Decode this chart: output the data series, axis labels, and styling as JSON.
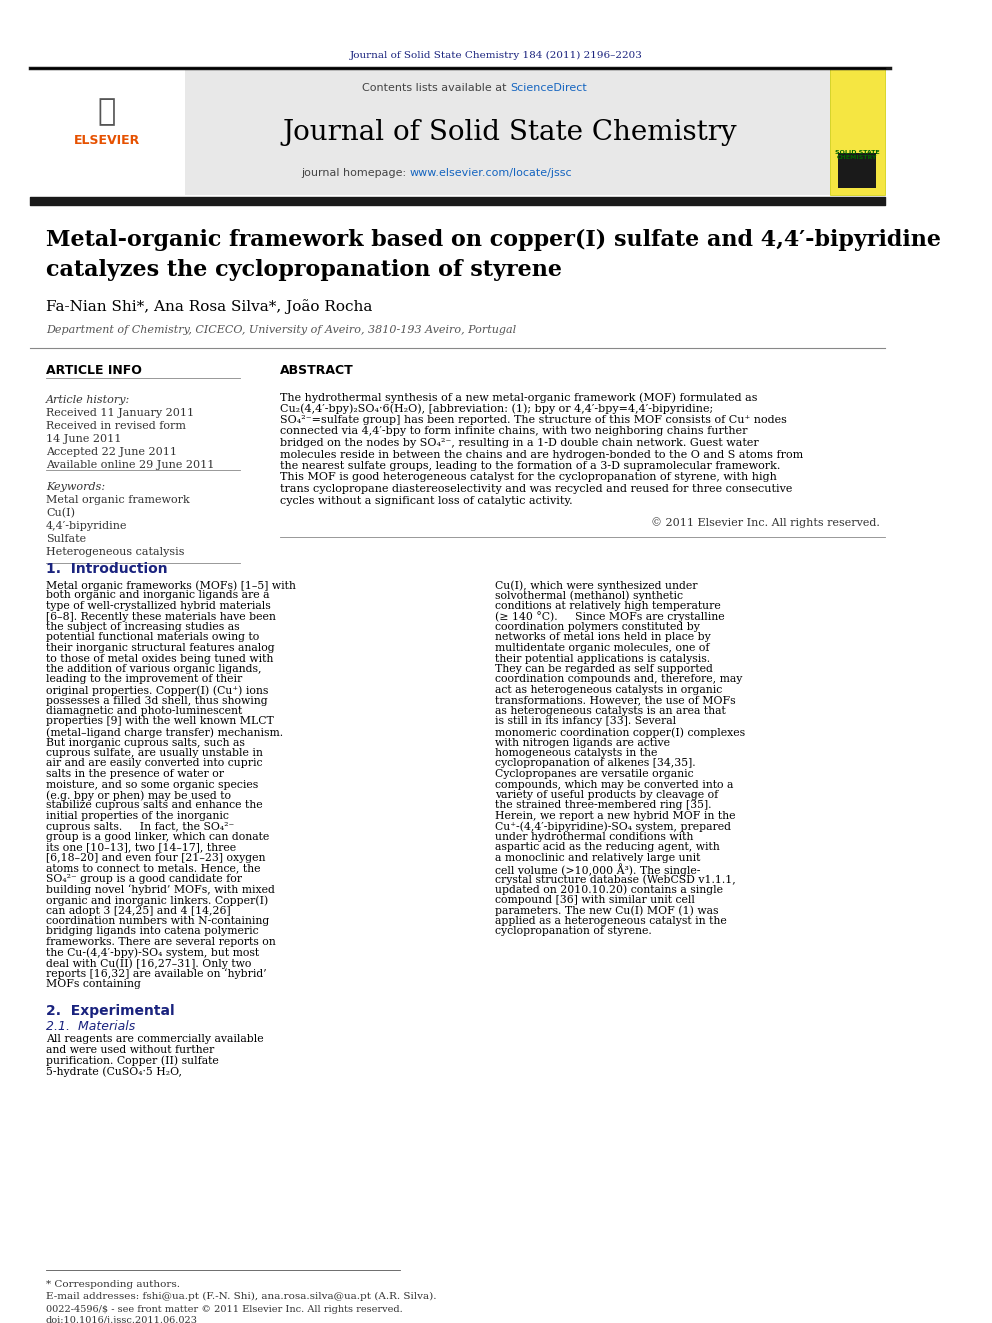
{
  "bg_color": "#ffffff",
  "header_line_color": "#000000",
  "journal_ref": "Journal of Solid State Chemistry 184 (2011) 2196–2203",
  "journal_ref_color": "#1a237e",
  "contents_text": "Contents lists available at ",
  "sciencedirect_text": "ScienceDirect",
  "sciencedirect_color": "#1565c0",
  "journal_name": "Journal of Solid State Chemistry",
  "journal_homepage_text": "journal homepage: www.elsevier.com/locate/jssc",
  "journal_homepage_url_color": "#1565c0",
  "header_bg": "#e8e8e8",
  "thick_bar_color": "#1a1a1a",
  "paper_title_line1": "Metal-organic framework based on copper(I) sulfate and 4,4′-bipyridine",
  "paper_title_line2": "catalyzes the cyclopropanation of styrene",
  "authors": "Fa-Nian Shi*, Ana Rosa Silva*, João Rocha",
  "affiliation": "Department of Chemistry, CICECO, University of Aveiro, 3810-193 Aveiro, Portugal",
  "article_info_title": "ARTICLE INFO",
  "abstract_title": "ABSTRACT",
  "article_history_label": "Article history:",
  "received": "Received 11 January 2011",
  "revised": "Received in revised form",
  "revised_date": "14 June 2011",
  "accepted": "Accepted 22 June 2011",
  "available": "Available online 29 June 2011",
  "keywords_label": "Keywords:",
  "keywords": [
    "Metal organic framework",
    "Cu(I)",
    "4,4′-bipyridine",
    "Sulfate",
    "Heterogeneous catalysis"
  ],
  "abstract_text": "The hydrothermal synthesis of a new metal-organic framework (MOF) formulated as Cu₂(4,4′-bpy)₂SO₄·6(H₂O), [abbreviation: (1); bpy or 4,4′-bpy=4,4′-bipyridine; SO₄²⁻=sulfate group] has been reported. The structure of this MOF consists of Cu⁺ nodes connected via 4,4′-bpy to form infinite chains, with two neighboring chains further bridged on the nodes by SO₄²⁻, resulting in a 1-D double chain network. Guest water molecules reside in between the chains and are hydrogen-bonded to the O and S atoms from the nearest sulfate groups, leading to the formation of a 3-D supramolecular framework. This MOF is good heterogeneous catalyst for the cyclopropanation of styrene, with high trans cyclopropane diastereoselectivity and was recycled and reused for three consecutive cycles without a significant loss of catalytic activity.",
  "copyright": "© 2011 Elsevier Inc. All rights reserved.",
  "intro_heading": "1.  Introduction",
  "intro_col1": "Metal organic frameworks (MOFs) [1–5] with both organic and inorganic ligands are a type of well-crystallized hybrid materials [6–8]. Recently these materials have been the subject of increasing studies as potential functional materials owing to their inorganic structural features analog to those of metal oxides being tuned with the addition of various organic ligands, leading to the improvement of their original properties. Copper(I) (Cu⁺) ions possesses a filled 3d shell, thus showing diamagnetic and photo-luminescent properties [9] with the well known MLCT (metal–ligand charge transfer) mechanism. But inorganic cuprous salts, such as cuprous sulfate, are usually unstable in air and are easily converted into cupric salts in the presence of water or moisture, and so some organic species (e.g. bpy or phen) may be used to stabilize cuprous salts and enhance the initial properties of the inorganic cuprous salts.\n    In fact, the SO₄²⁻ group is a good linker, which can donate its one [10–13], two [14–17], three [6,18–20] and even four [21–23] oxygen atoms to connect to metals. Hence, the SO₄²⁻ group is a good candidate for building novel ‘hybrid’ MOFs, with mixed organic and inorganic linkers. Copper(I) can adopt 3 [24,25] and 4 [14,26] coordination numbers with N-containing bridging ligands into catena polymeric frameworks. There are several reports on the Cu-(4,4′-bpy)-SO₄ system, but most deal with Cu(II) [16,27–31]. Only two reports [16,32] are available on ‘hybrid’ MOFs containing",
  "intro_col2": "Cu(I), which were synthesized under solvothermal (methanol) synthetic conditions at relatively high temperature (≥ 140 °C).\n    Since MOFs are crystalline coordination polymers constituted by networks of metal ions held in place by multidentate organic molecules, one of their potential applications is catalysis. They can be regarded as self supported coordination compounds and, therefore, may act as heterogeneous catalysts in organic transformations. However, the use of MOFs as heterogeneous catalysts is an area that is still in its infancy [33]. Several monomeric coordination copper(I) complexes with nitrogen ligands are active homogeneous catalysts in the cyclopropanation of alkenes [34,35]. Cyclopropanes are versatile organic compounds, which may be converted into a variety of useful products by cleavage of the strained three-membered ring [35].\n    Herein, we report a new hybrid MOF in the Cu⁺-(4,4′-bipyridine)-SO₄ system, prepared under hydrothermal conditions with aspartic acid as the reducing agent, with a monoclinic and relatively large unit cell volume (>10,000 Å³). The single-crystal structure database (WebCSD v1.1.1, updated on 2010.10.20) contains a single compound [36] with similar unit cell parameters. The new Cu(I) MOF (1) was applied as a heterogeneous catalyst in the cyclopropanation of styrene.",
  "section2_heading": "2.  Experimental",
  "section21_heading": "2.1.  Materials",
  "materials_text": "All reagents are commercially available and were used without further purification. Copper (II) sulfate 5-hydrate (CuSO₄·5 H₂O,",
  "footnote_text": "* Corresponding authors.",
  "email_text": "E-mail addresses: fshi@ua.pt (F.-N. Shi), ana.rosa.silva@ua.pt (A.R. Silva).",
  "issn_text": "0022-4596/$ - see front matter © 2011 Elsevier Inc. All rights reserved.",
  "doi_text": "doi:10.1016/j.jssc.2011.06.023",
  "section_color": "#1a237e",
  "italic_color": "#333333",
  "text_color": "#000000",
  "link_color": "#1565c0"
}
